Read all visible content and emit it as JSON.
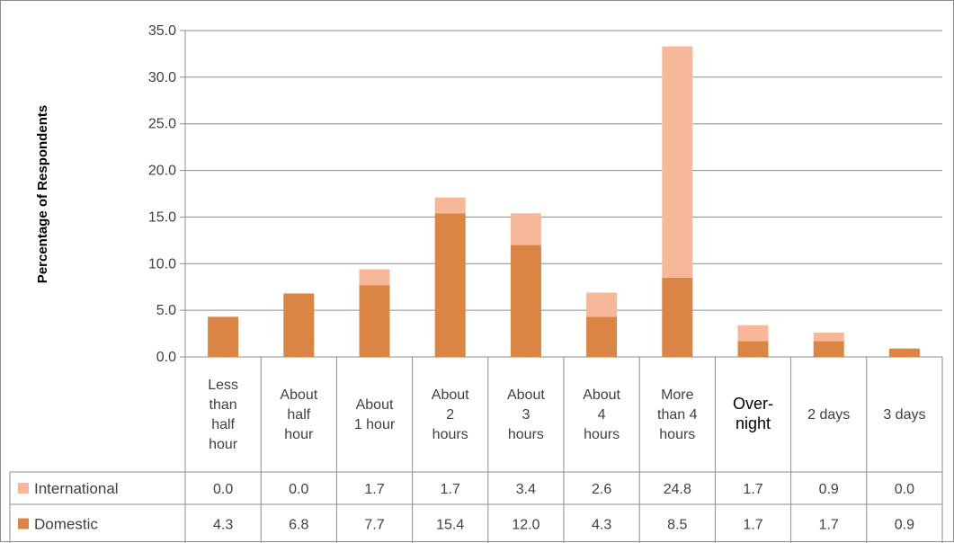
{
  "chart_data": {
    "type": "bar",
    "stacked": true,
    "ylabel": "Percentage of Respondents",
    "xlabel": "",
    "ylim": [
      0,
      35
    ],
    "y_tick_step": 5,
    "y_tick_labels": [
      "0.0",
      "5.0",
      "10.0",
      "15.0",
      "20.0",
      "25.0",
      "30.0",
      "35.0"
    ],
    "grid": true,
    "legend_placement": "data-table",
    "categories": [
      [
        "Less",
        "than",
        "half",
        "hour"
      ],
      [
        "About",
        "half",
        "hour"
      ],
      [
        "About",
        "1 hour"
      ],
      [
        "About",
        "2",
        "hours"
      ],
      [
        "About",
        "3",
        "hours"
      ],
      [
        "About",
        "4",
        "hours"
      ],
      [
        "More",
        "than 4",
        "hours"
      ],
      [
        "Over-",
        "night"
      ],
      [
        "2 days"
      ],
      [
        "3 days"
      ]
    ],
    "series": [
      {
        "name": "International",
        "color": "#f7b89a",
        "values": [
          0.0,
          0.0,
          1.7,
          1.7,
          3.4,
          2.6,
          24.8,
          1.7,
          0.9,
          0.0
        ],
        "labels": [
          "0.0",
          "0.0",
          "1.7",
          "1.7",
          "3.4",
          "2.6",
          "24.8",
          "1.7",
          "0.9",
          "0.0"
        ]
      },
      {
        "name": "Domestic",
        "color": "#db8544",
        "values": [
          4.3,
          6.8,
          7.7,
          15.4,
          12.0,
          4.3,
          8.5,
          1.7,
          1.7,
          0.9
        ],
        "labels": [
          "4.3",
          "6.8",
          "7.7",
          "15.4",
          "12.0",
          "4.3",
          "8.5",
          "1.7",
          "1.7",
          "0.9"
        ]
      }
    ]
  }
}
